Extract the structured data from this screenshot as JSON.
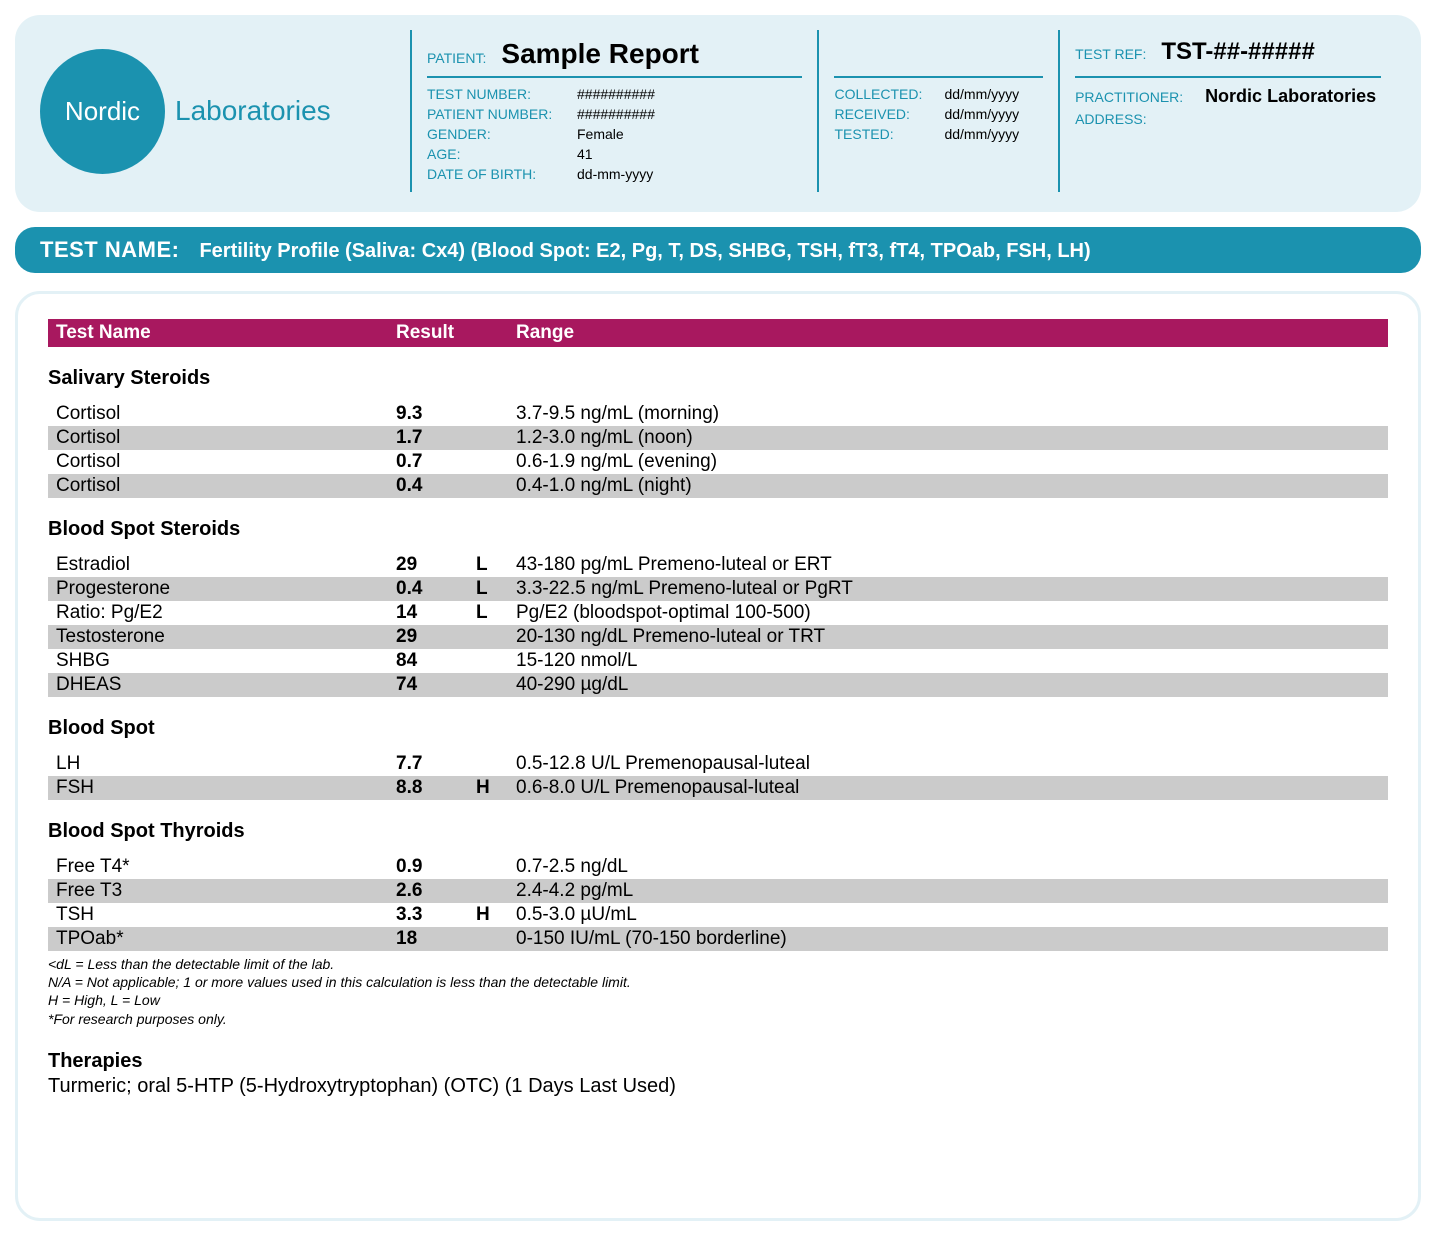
{
  "colors": {
    "header_bg": "#e3f1f6",
    "teal": "#1b92af",
    "magenta": "#a8185f",
    "row_shade": "#cbcbcb",
    "white": "#ffffff",
    "black": "#000000"
  },
  "logo": {
    "circle_text": "Nordic",
    "side_text": "Laboratories"
  },
  "patient_block": {
    "label": "PATIENT:",
    "name": "Sample Report",
    "fields": [
      {
        "label": "TEST NUMBER:",
        "value": "##########"
      },
      {
        "label": "PATIENT NUMBER:",
        "value": "##########"
      },
      {
        "label": "GENDER:",
        "value": "Female"
      },
      {
        "label": "AGE:",
        "value": "41"
      },
      {
        "label": "DATE OF BIRTH:",
        "value": "dd-mm-yyyy"
      }
    ]
  },
  "dates_block": {
    "fields": [
      {
        "label": "COLLECTED:",
        "value": "dd/mm/yyyy"
      },
      {
        "label": "RECEIVED:",
        "value": "dd/mm/yyyy"
      },
      {
        "label": "TESTED:",
        "value": "dd/mm/yyyy"
      }
    ]
  },
  "ref_block": {
    "top_label": "TEST REF:",
    "top_value": "TST-##-#####",
    "fields": [
      {
        "label": "PRACTITIONER:",
        "value": "Nordic Laboratories",
        "bold": true
      },
      {
        "label": "ADDRESS:",
        "value": ""
      }
    ]
  },
  "test_name": {
    "label": "TEST NAME:",
    "value": "Fertility Profile (Saliva: Cx4) (Blood Spot: E2, Pg, T, DS, SHBG, TSH, fT3, fT4, TPOab, FSH, LH)"
  },
  "results_header": {
    "name": "Test Name",
    "result": "Result",
    "range": "Range"
  },
  "sections": [
    {
      "title": "Salivary Steroids",
      "rows": [
        {
          "name": "Cortisol",
          "result": "9.3",
          "flag": "",
          "range": "3.7-9.5 ng/mL (morning)",
          "shaded": false
        },
        {
          "name": "Cortisol",
          "result": "1.7",
          "flag": "",
          "range": "1.2-3.0 ng/mL (noon)",
          "shaded": true
        },
        {
          "name": "Cortisol",
          "result": "0.7",
          "flag": "",
          "range": "0.6-1.9 ng/mL (evening)",
          "shaded": false
        },
        {
          "name": "Cortisol",
          "result": "0.4",
          "flag": "",
          "range": "0.4-1.0 ng/mL (night)",
          "shaded": true
        }
      ]
    },
    {
      "title": "Blood Spot Steroids",
      "rows": [
        {
          "name": "Estradiol",
          "result": "29",
          "flag": "L",
          "range": "43-180 pg/mL Premeno-luteal or ERT",
          "shaded": false
        },
        {
          "name": "Progesterone",
          "result": "0.4",
          "flag": "L",
          "range": "3.3-22.5 ng/mL Premeno-luteal or PgRT",
          "shaded": true
        },
        {
          "name": "Ratio: Pg/E2",
          "result": "14",
          "flag": "L",
          "range": "Pg/E2 (bloodspot-optimal 100-500)",
          "shaded": false
        },
        {
          "name": "Testosterone",
          "result": "29",
          "flag": "",
          "range": "20-130 ng/dL Premeno-luteal or TRT",
          "shaded": true
        },
        {
          "name": "SHBG",
          "result": "84",
          "flag": "",
          "range": "15-120 nmol/L",
          "shaded": false
        },
        {
          "name": "DHEAS",
          "result": "74",
          "flag": "",
          "range": "40-290 µg/dL",
          "shaded": true
        }
      ]
    },
    {
      "title": "Blood Spot",
      "rows": [
        {
          "name": "LH",
          "result": "7.7",
          "flag": "",
          "range": "0.5-12.8 U/L Premenopausal-luteal",
          "shaded": false
        },
        {
          "name": "FSH",
          "result": "8.8",
          "flag": "H",
          "range": "0.6-8.0 U/L Premenopausal-luteal",
          "shaded": true
        }
      ]
    },
    {
      "title": "Blood Spot Thyroids",
      "rows": [
        {
          "name": "Free T4*",
          "result": "0.9",
          "flag": "",
          "range": "0.7-2.5 ng/dL",
          "shaded": false
        },
        {
          "name": "Free T3",
          "result": "2.6",
          "flag": "",
          "range": "2.4-4.2 pg/mL",
          "shaded": true
        },
        {
          "name": "TSH",
          "result": "3.3",
          "flag": "H",
          "range": "0.5-3.0 µU/mL",
          "shaded": false
        },
        {
          "name": "TPOab*",
          "result": "18",
          "flag": "",
          "range": "0-150 IU/mL (70-150 borderline)",
          "shaded": true
        }
      ]
    }
  ],
  "footnotes": [
    "<dL = Less than the detectable limit of the lab.",
    "N/A = Not applicable; 1 or more values used in this calculation is less than the detectable limit.",
    "H = High, L = Low",
    "*For research purposes only."
  ],
  "therapies": {
    "title": "Therapies",
    "body": "Turmeric;  oral 5-HTP (5-Hydroxytryptophan) (OTC) (1 Days Last Used)"
  }
}
